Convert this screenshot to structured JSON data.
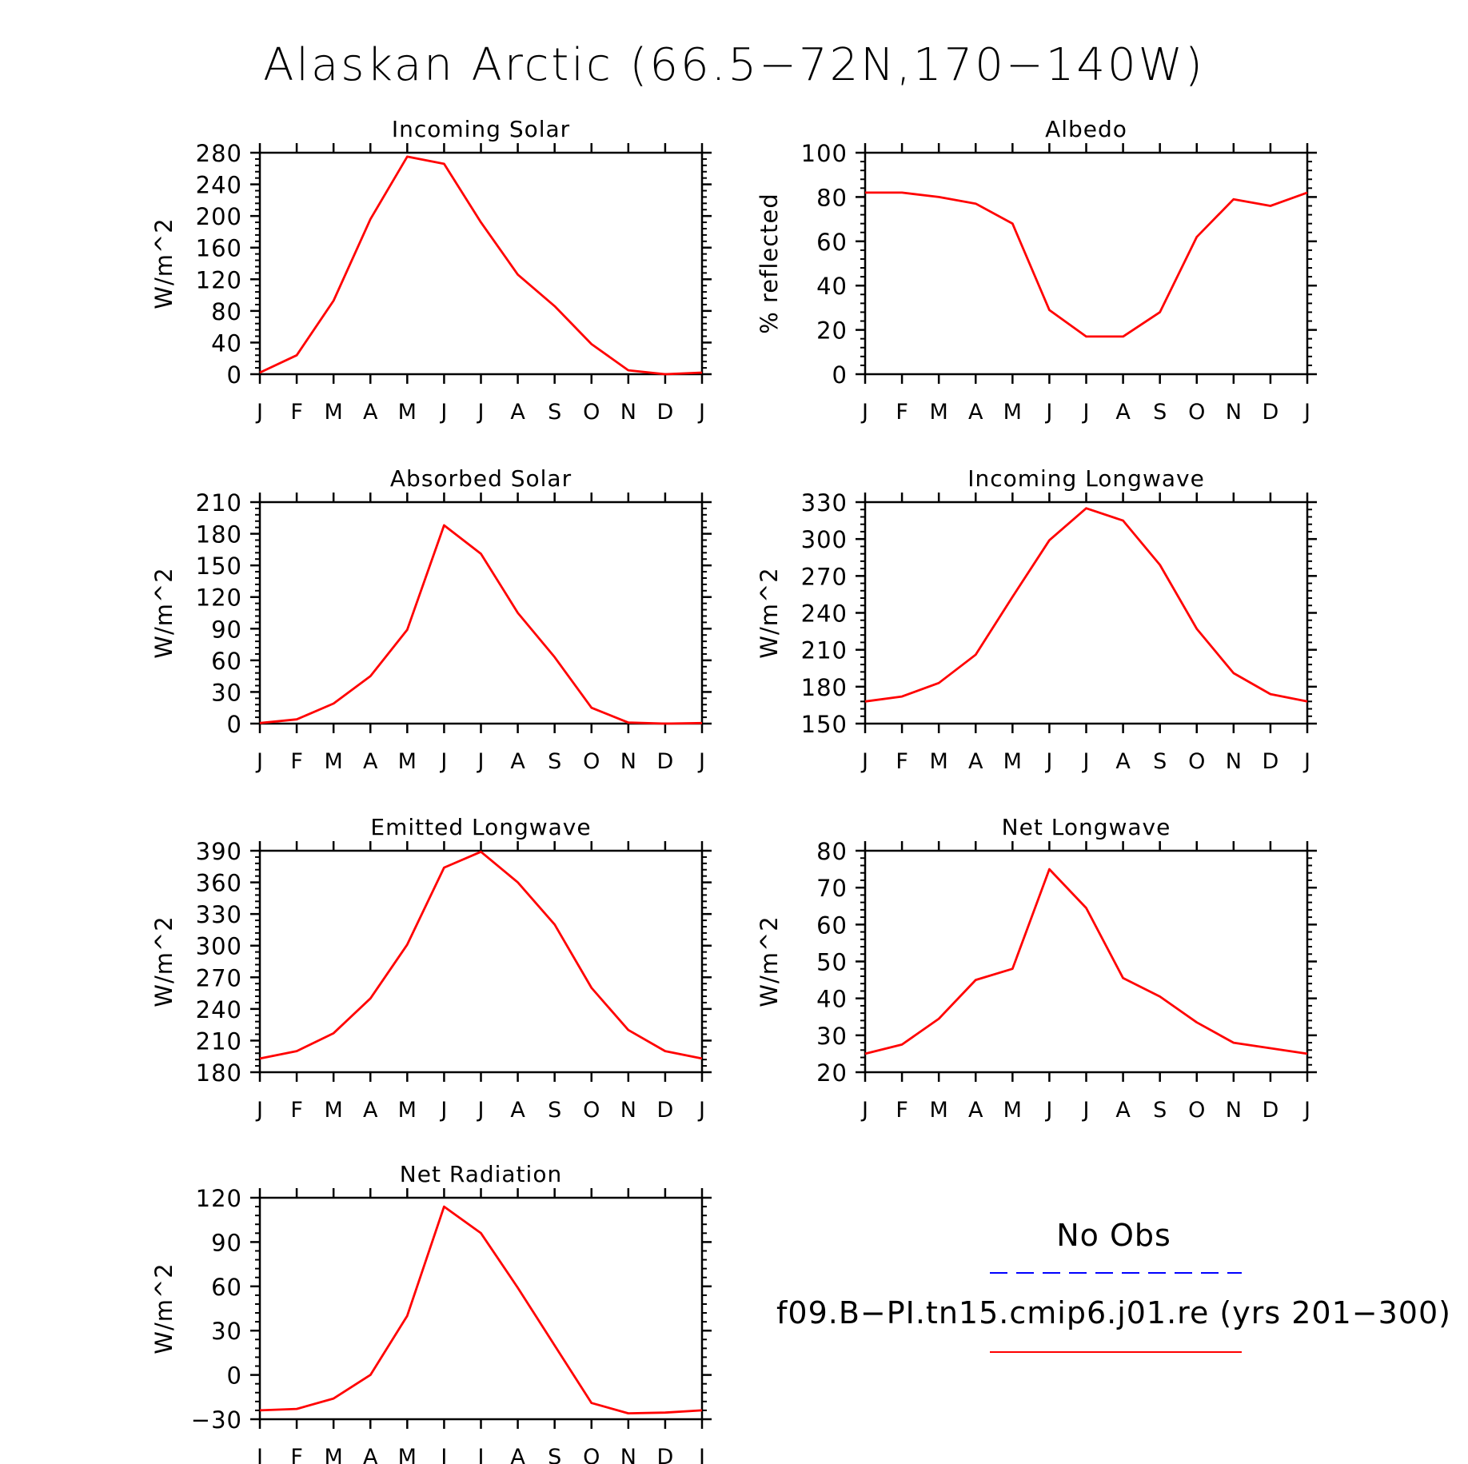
{
  "figure": {
    "title": "Alaskan Arctic (66.5−72N,170−140W)"
  },
  "colors": {
    "model": "#ff0000",
    "obs": "#0000ff",
    "axis": "#000000"
  },
  "chart_data": [
    {
      "type": "line",
      "title": "Incoming Solar",
      "ylabel": "W/m^2",
      "categories": [
        "J",
        "F",
        "M",
        "A",
        "M",
        "J",
        "J",
        "A",
        "S",
        "O",
        "N",
        "D",
        "J"
      ],
      "ylim": [
        0,
        280
      ],
      "yticks": [
        0,
        40,
        80,
        120,
        160,
        200,
        240,
        280
      ],
      "series": [
        {
          "values": [
            2,
            24,
            93,
            196,
            275,
            266,
            192,
            126,
            86,
            38,
            5,
            0,
            2
          ]
        }
      ]
    },
    {
      "type": "line",
      "title": "Albedo",
      "ylabel": "% reflected",
      "categories": [
        "J",
        "F",
        "M",
        "A",
        "M",
        "J",
        "J",
        "A",
        "S",
        "O",
        "N",
        "D",
        "J"
      ],
      "ylim": [
        0,
        100
      ],
      "yticks": [
        0,
        20,
        40,
        60,
        80,
        100
      ],
      "series": [
        {
          "values": [
            82,
            82,
            80,
            77,
            68,
            29,
            17,
            17,
            28,
            62,
            79,
            76,
            82
          ]
        }
      ]
    },
    {
      "type": "line",
      "title": "Absorbed Solar",
      "ylabel": "W/m^2",
      "categories": [
        "J",
        "F",
        "M",
        "A",
        "M",
        "J",
        "J",
        "A",
        "S",
        "O",
        "N",
        "D",
        "J"
      ],
      "ylim": [
        0,
        210
      ],
      "yticks": [
        0,
        30,
        60,
        90,
        120,
        150,
        180,
        210
      ],
      "series": [
        {
          "values": [
            0.5,
            4,
            19,
            45,
            89,
            188,
            161,
            105,
            63,
            15,
            1,
            0,
            0.5
          ]
        }
      ]
    },
    {
      "type": "line",
      "title": "Incoming Longwave",
      "ylabel": "W/m^2",
      "categories": [
        "J",
        "F",
        "M",
        "A",
        "M",
        "J",
        "J",
        "A",
        "S",
        "O",
        "N",
        "D",
        "J"
      ],
      "ylim": [
        150,
        330
      ],
      "yticks": [
        150,
        180,
        210,
        240,
        270,
        300,
        330
      ],
      "series": [
        {
          "values": [
            168,
            172,
            183,
            206,
            253,
            299,
            325,
            315,
            279,
            227,
            191,
            174,
            168
          ]
        }
      ]
    },
    {
      "type": "line",
      "title": "Emitted Longwave",
      "ylabel": "W/m^2",
      "categories": [
        "J",
        "F",
        "M",
        "A",
        "M",
        "J",
        "J",
        "A",
        "S",
        "O",
        "N",
        "D",
        "J"
      ],
      "ylim": [
        180,
        390
      ],
      "yticks": [
        180,
        210,
        240,
        270,
        300,
        330,
        360,
        390
      ],
      "series": [
        {
          "values": [
            193,
            200,
            217,
            250,
            301,
            374,
            389,
            360,
            320,
            260,
            220,
            200,
            193
          ]
        }
      ]
    },
    {
      "type": "line",
      "title": "Net Longwave",
      "ylabel": "W/m^2",
      "categories": [
        "J",
        "F",
        "M",
        "A",
        "M",
        "J",
        "J",
        "A",
        "S",
        "O",
        "N",
        "D",
        "J"
      ],
      "ylim": [
        20,
        80
      ],
      "yticks": [
        20,
        30,
        40,
        50,
        60,
        70,
        80
      ],
      "series": [
        {
          "values": [
            25,
            27.5,
            34.5,
            45,
            48,
            75,
            64.5,
            45.5,
            40.5,
            33.5,
            28,
            26.5,
            25
          ]
        }
      ]
    },
    {
      "type": "line",
      "title": "Net Radiation",
      "ylabel": "W/m^2",
      "categories": [
        "J",
        "F",
        "M",
        "A",
        "M",
        "J",
        "J",
        "A",
        "S",
        "O",
        "N",
        "D",
        "J"
      ],
      "ylim": [
        -30,
        120
      ],
      "yticks": [
        -30,
        0,
        30,
        60,
        90,
        120
      ],
      "series": [
        {
          "values": [
            -24,
            -23,
            -16,
            0,
            40,
            114,
            96,
            59,
            20,
            -19,
            -26,
            -25.5,
            -24
          ]
        }
      ]
    }
  ],
  "legend": {
    "obs_label": "No Obs",
    "model_label": "f09.B−PI.tn15.cmip6.j01.re (yrs 201−300)"
  }
}
